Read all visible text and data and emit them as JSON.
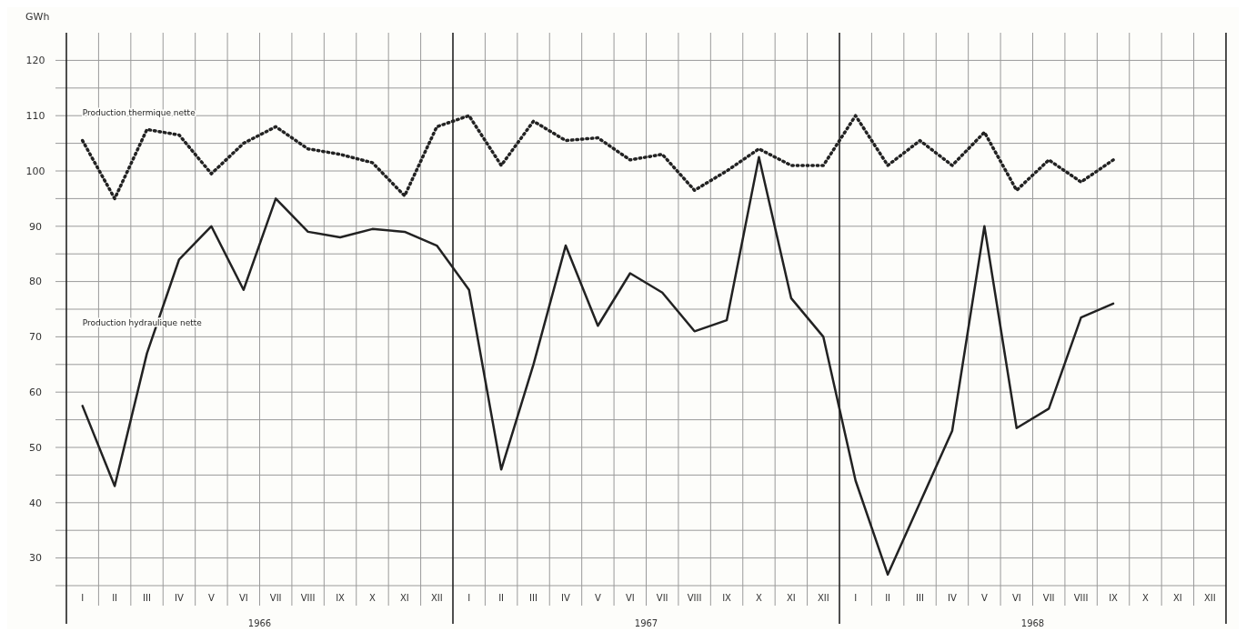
{
  "chart_data": {
    "type": "line",
    "ylabel": "GWh",
    "categories": [
      "I",
      "II",
      "III",
      "IV",
      "V",
      "VI",
      "VII",
      "VIII",
      "IX",
      "X",
      "XI",
      "XII",
      "I",
      "II",
      "III",
      "IV",
      "V",
      "VI",
      "VII",
      "VIII",
      "IX",
      "X",
      "XI",
      "XII",
      "I",
      "II",
      "III",
      "IV",
      "V",
      "VI",
      "VII",
      "VIII",
      "IX",
      "X",
      "XI",
      "XII"
    ],
    "series": [
      {
        "name": "Production thermique nette",
        "color": "#222222",
        "line_style": "dotted",
        "values": [
          105.5,
          95,
          107.5,
          106.5,
          99.5,
          105,
          108,
          104,
          103,
          101.5,
          95.5,
          108,
          110,
          101,
          109,
          105.5,
          106,
          102,
          103,
          96.5,
          100,
          104,
          101,
          101,
          110,
          101,
          105.5,
          101,
          107,
          96.5,
          102,
          98,
          102,
          null,
          null,
          null
        ]
      },
      {
        "name": "Production hydraulique nette",
        "color": "#222222",
        "line_style": "solid",
        "values": [
          57.5,
          43,
          67,
          84,
          90,
          78.5,
          95,
          89,
          88,
          89.5,
          89,
          86.5,
          78.5,
          46,
          65,
          86.5,
          72,
          81.5,
          78,
          71,
          73,
          102.5,
          77,
          70,
          44,
          27,
          40,
          53,
          90,
          53.5,
          57,
          73.5,
          76,
          null,
          null,
          null
        ]
      }
    ],
    "annotations": [
      "1966",
      "1967",
      "1968"
    ],
    "ylim": [
      25,
      125
    ],
    "yticks": [
      {
        "value": 25,
        "label": null
      },
      30,
      {
        "value": 35,
        "label": null
      },
      40,
      {
        "value": 45,
        "label": null
      },
      50,
      {
        "value": 55,
        "label": null
      },
      60,
      {
        "value": 65,
        "label": null
      },
      70,
      {
        "value": 75,
        "label": null
      },
      80,
      {
        "value": 85,
        "label": null
      },
      90,
      {
        "value": 95,
        "label": null
      },
      100,
      {
        "value": 105,
        "label": null
      },
      110,
      {
        "value": 115,
        "label": null
      },
      120
    ],
    "grid": true
  }
}
